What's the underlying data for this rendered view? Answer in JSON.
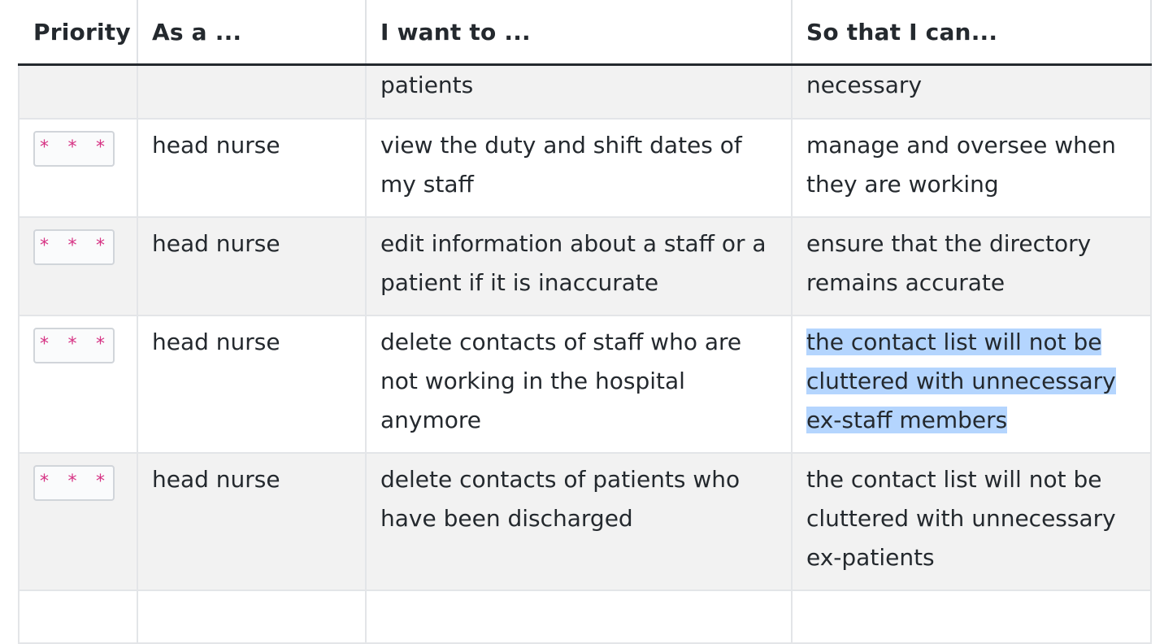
{
  "table": {
    "headers": [
      "Priority",
      "As a ...",
      "I want to ...",
      "So that I can..."
    ],
    "partial_row": {
      "priority": "",
      "role": "",
      "want": "patients",
      "so_that": "necessary"
    },
    "rows": [
      {
        "priority": "* * *",
        "role": "head nurse",
        "want": "view the duty and shift dates of my staff",
        "so_that": "manage and oversee when they are working"
      },
      {
        "priority": "* * *",
        "role": "head nurse",
        "want": "edit information about a staff or a patient if it is inaccurate",
        "so_that": "ensure that the directory remains accurate"
      },
      {
        "priority": "* * *",
        "role": "head nurse",
        "want": "delete contacts of staff who are not working in the hospital anymore",
        "so_that": "the contact list will not be cluttered with unnecessary ex-staff members"
      },
      {
        "priority": "* * *",
        "role": "head nurse",
        "want": "delete contacts of patients who have been discharged",
        "so_that": "the contact list will not be cluttered with unnecessary ex-patients"
      }
    ]
  },
  "selection": {
    "highlight_color": "#b4d5fe"
  }
}
